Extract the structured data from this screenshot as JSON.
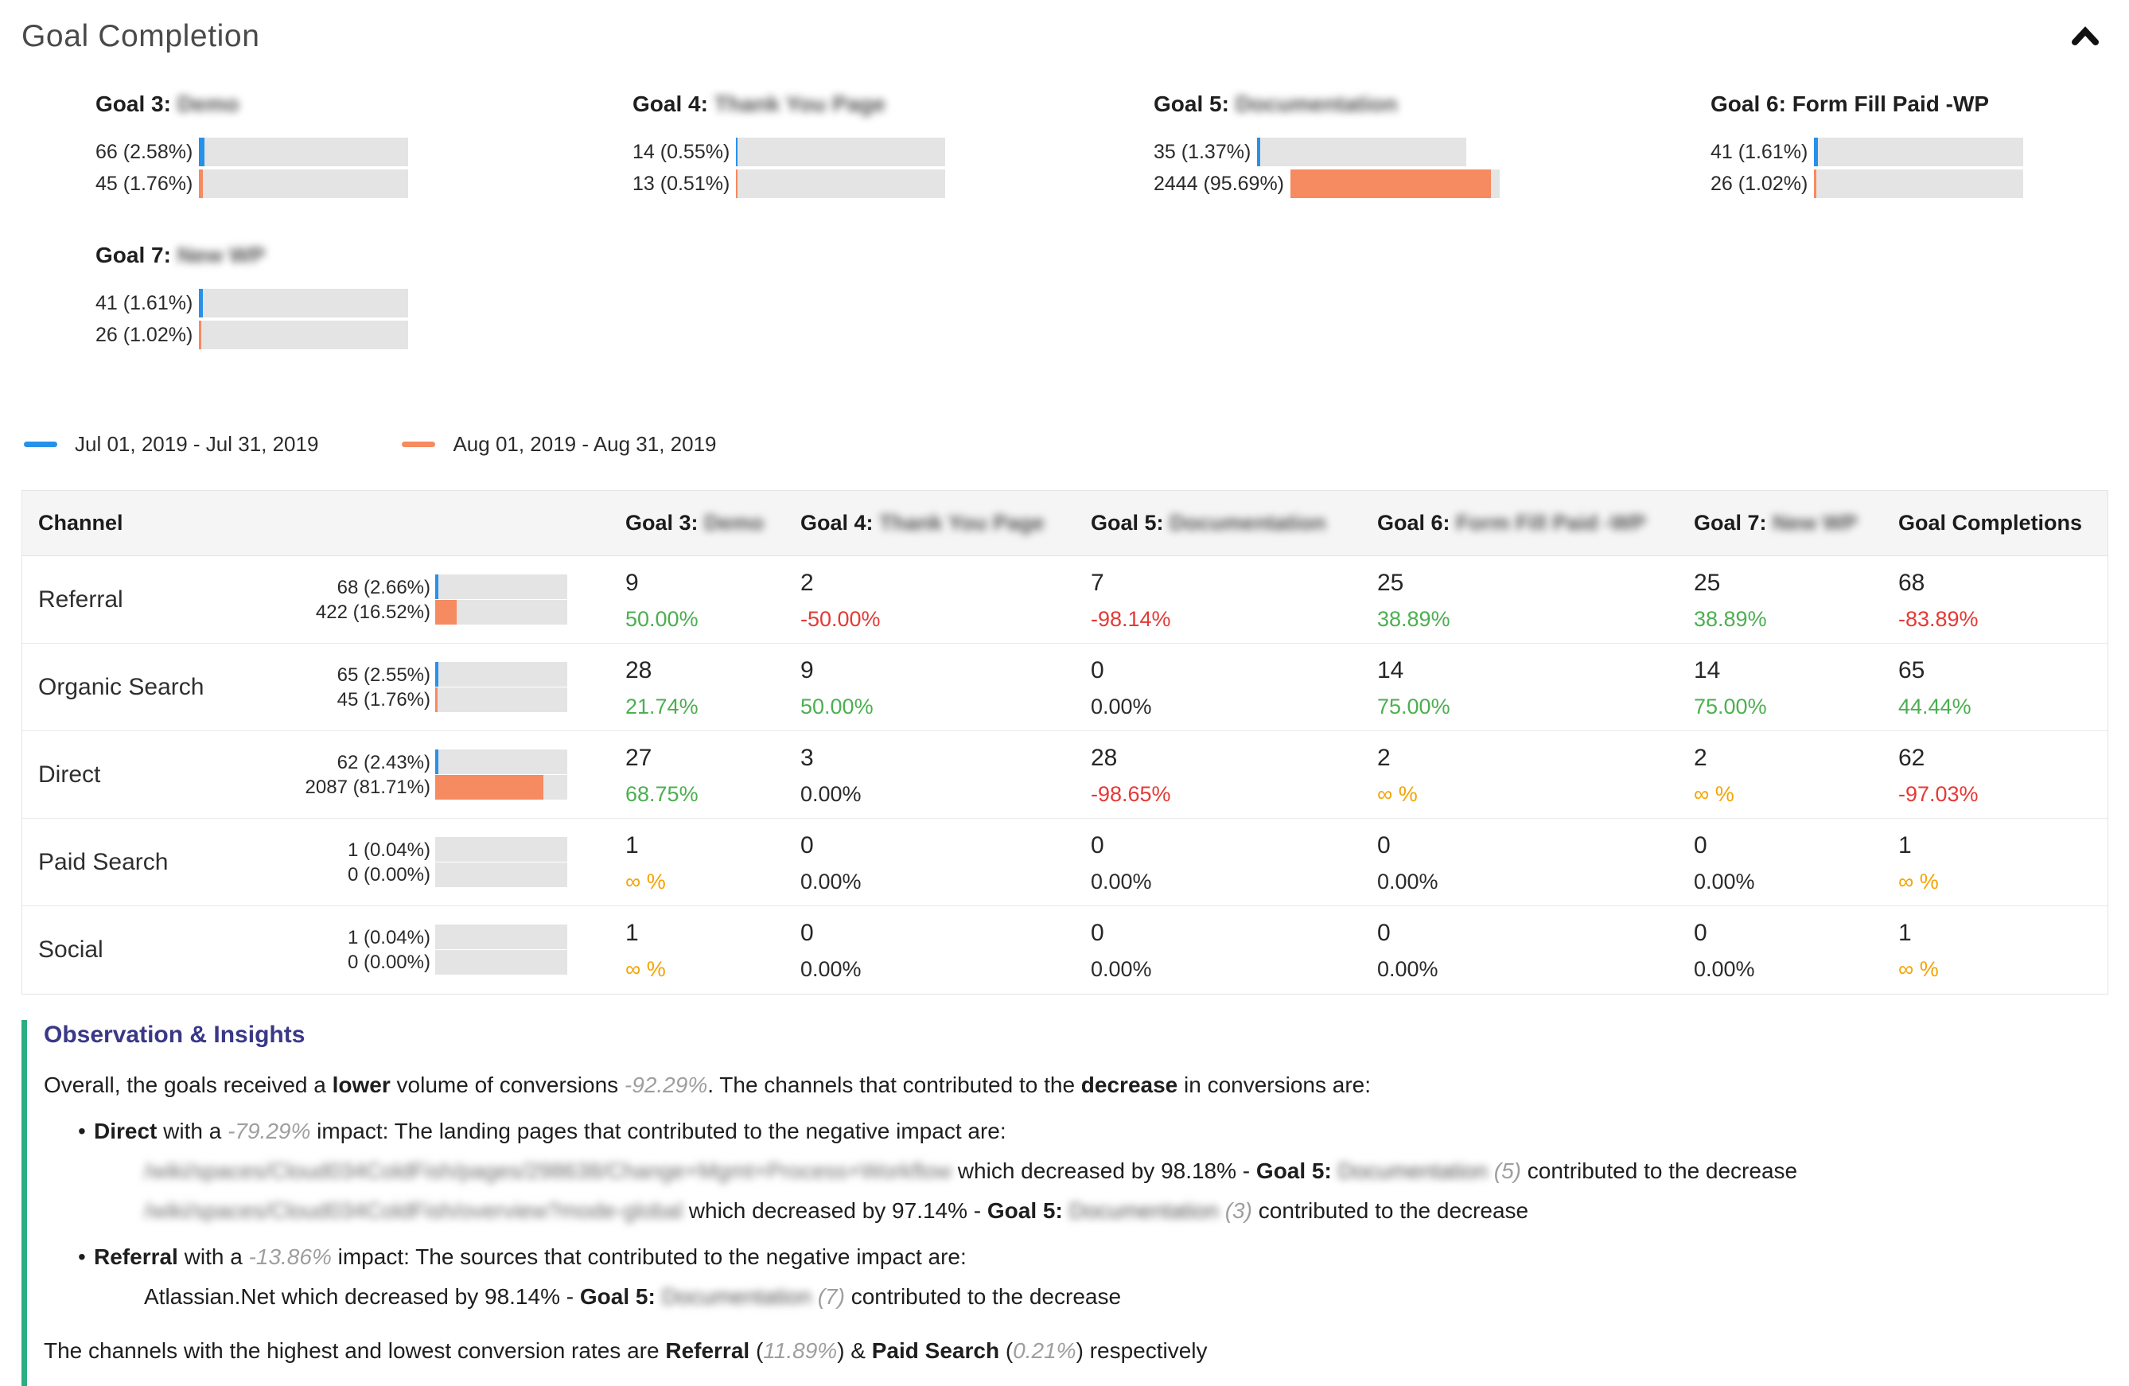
{
  "page": {
    "title": "Goal Completion"
  },
  "colors": {
    "period1_blue": "#2791ea",
    "period2_orange": "#f68a60",
    "positive_green": "#4caf50",
    "negative_red": "#e53935",
    "infinity_amber": "#f5a300",
    "insights_accent_green": "#2bae81",
    "insights_title_indigo": "#3a3887",
    "bar_track_gray": "#e4e4e4"
  },
  "goal_cards": [
    {
      "prefix": "Goal 3:",
      "name": "Demo",
      "name_blurred": true,
      "rows": [
        {
          "label": "66 (2.58%)",
          "pct": 2.58
        },
        {
          "label": "45 (1.76%)",
          "pct": 1.76
        }
      ]
    },
    {
      "prefix": "Goal 4:",
      "name": "Thank You Page",
      "name_blurred": true,
      "rows": [
        {
          "label": "14 (0.55%)",
          "pct": 0.55
        },
        {
          "label": "13 (0.51%)",
          "pct": 0.51
        }
      ]
    },
    {
      "prefix": "Goal 5:",
      "name": "Documentation",
      "name_blurred": true,
      "rows": [
        {
          "label": "35 (1.37%)",
          "pct": 1.37
        },
        {
          "label": "2444 (95.69%)",
          "pct": 95.69
        }
      ]
    },
    {
      "prefix": "Goal 6:",
      "name": "Form Fill Paid -WP",
      "name_blurred": false,
      "rows": [
        {
          "label": "41 (1.61%)",
          "pct": 1.61
        },
        {
          "label": "26 (1.02%)",
          "pct": 1.02
        }
      ]
    },
    {
      "prefix": "Goal 7:",
      "name": "New WP",
      "name_blurred": true,
      "rows": [
        {
          "label": "41 (1.61%)",
          "pct": 1.61
        },
        {
          "label": "26 (1.02%)",
          "pct": 1.02
        }
      ]
    }
  ],
  "legend": {
    "periods": [
      {
        "label": "Jul 01, 2019 - Jul 31, 2019",
        "color": "#2791ea"
      },
      {
        "label": "Aug 01, 2019 - Aug 31, 2019",
        "color": "#f68a60"
      }
    ]
  },
  "table": {
    "header": {
      "channel": "Channel",
      "goal3_prefix": "Goal 3:",
      "goal3_name": "Demo",
      "goal4_prefix": "Goal 4:",
      "goal4_name": "Thank You Page",
      "goal5_prefix": "Goal 5:",
      "goal5_name": "Documentation",
      "goal6_prefix": "Goal 6:",
      "goal6_name": "Form Fill Paid -WP",
      "goal7_prefix": "Goal 7:",
      "goal7_name": "New WP",
      "completions": "Goal Completions"
    },
    "rows": [
      {
        "channel": "Referral",
        "bars": [
          {
            "label": "68 (2.66%)",
            "pct": 2.66
          },
          {
            "label": "422 (16.52%)",
            "pct": 16.52
          }
        ],
        "cells": [
          {
            "value": "9",
            "delta": "50.00%",
            "tone": "green"
          },
          {
            "value": "2",
            "delta": "-50.00%",
            "tone": "red"
          },
          {
            "value": "7",
            "delta": "-98.14%",
            "tone": "red"
          },
          {
            "value": "25",
            "delta": "38.89%",
            "tone": "green"
          },
          {
            "value": "25",
            "delta": "38.89%",
            "tone": "green"
          },
          {
            "value": "68",
            "delta": "-83.89%",
            "tone": "red"
          }
        ]
      },
      {
        "channel": "Organic Search",
        "bars": [
          {
            "label": "65 (2.55%)",
            "pct": 2.55
          },
          {
            "label": "45 (1.76%)",
            "pct": 1.76
          }
        ],
        "cells": [
          {
            "value": "28",
            "delta": "21.74%",
            "tone": "green"
          },
          {
            "value": "9",
            "delta": "50.00%",
            "tone": "green"
          },
          {
            "value": "0",
            "delta": "0.00%",
            "tone": "neutral"
          },
          {
            "value": "14",
            "delta": "75.00%",
            "tone": "green"
          },
          {
            "value": "14",
            "delta": "75.00%",
            "tone": "green"
          },
          {
            "value": "65",
            "delta": "44.44%",
            "tone": "green"
          }
        ]
      },
      {
        "channel": "Direct",
        "bars": [
          {
            "label": "62 (2.43%)",
            "pct": 2.43
          },
          {
            "label": "2087 (81.71%)",
            "pct": 81.71
          }
        ],
        "cells": [
          {
            "value": "27",
            "delta": "68.75%",
            "tone": "green"
          },
          {
            "value": "3",
            "delta": "0.00%",
            "tone": "neutral"
          },
          {
            "value": "28",
            "delta": "-98.65%",
            "tone": "red"
          },
          {
            "value": "2",
            "delta": "∞ %",
            "tone": "amber"
          },
          {
            "value": "2",
            "delta": "∞ %",
            "tone": "amber"
          },
          {
            "value": "62",
            "delta": "-97.03%",
            "tone": "red"
          }
        ]
      },
      {
        "channel": "Paid Search",
        "bars": [
          {
            "label": "1 (0.04%)",
            "pct": 0.04
          },
          {
            "label": "0 (0.00%)",
            "pct": 0
          }
        ],
        "cells": [
          {
            "value": "1",
            "delta": "∞ %",
            "tone": "amber"
          },
          {
            "value": "0",
            "delta": "0.00%",
            "tone": "neutral"
          },
          {
            "value": "0",
            "delta": "0.00%",
            "tone": "neutral"
          },
          {
            "value": "0",
            "delta": "0.00%",
            "tone": "neutral"
          },
          {
            "value": "0",
            "delta": "0.00%",
            "tone": "neutral"
          },
          {
            "value": "1",
            "delta": "∞ %",
            "tone": "amber"
          }
        ]
      },
      {
        "channel": "Social",
        "bars": [
          {
            "label": "1 (0.04%)",
            "pct": 0.04
          },
          {
            "label": "0 (0.00%)",
            "pct": 0
          }
        ],
        "cells": [
          {
            "value": "1",
            "delta": "∞ %",
            "tone": "amber"
          },
          {
            "value": "0",
            "delta": "0.00%",
            "tone": "neutral"
          },
          {
            "value": "0",
            "delta": "0.00%",
            "tone": "neutral"
          },
          {
            "value": "0",
            "delta": "0.00%",
            "tone": "neutral"
          },
          {
            "value": "0",
            "delta": "0.00%",
            "tone": "neutral"
          },
          {
            "value": "1",
            "delta": "∞ %",
            "tone": "amber"
          }
        ]
      }
    ]
  },
  "insights": {
    "title": "Observation & Insights",
    "p1": {
      "t1": "Overall, the goals received a ",
      "b1": "lower",
      "t2": " volume of conversions ",
      "i1": "-92.29%",
      "t3": ". The channels that contributed to the ",
      "b2": "decrease",
      "t4": " in conversions are:"
    },
    "bullet1": {
      "b1": "Direct",
      "t1": " with a ",
      "i1": "-79.29%",
      "t2": " impact: The landing pages that contributed to the negative impact are:"
    },
    "url_line1": {
      "blur_url": "/wiki/spaces/Cloud034ColdFish/pages/298638/Change+Mgmt+Process+Workflow",
      "t1": " which decreased by 98.18% - ",
      "b1": "Goal 5:",
      "blur_goal": "Documentation",
      "i1": "(5)",
      "t2": " contributed to the decrease"
    },
    "url_line2": {
      "blur_url": "/wiki/spaces/Cloud034ColdFish/overview?mode-global",
      "t1": " which decreased by 97.14% - ",
      "b1": "Goal 5:",
      "blur_goal": "Documentation",
      "i1": "(3)",
      "t2": " contributed to the decrease"
    },
    "bullet2": {
      "b1": "Referral",
      "t1": " with a ",
      "i1": "-13.86%",
      "t2": " impact: The sources that contributed to the negative impact are:"
    },
    "source_line": {
      "t0": "Atlassian.Net which decreased by 98.14% - ",
      "b1": "Goal 5:",
      "blur_goal": "Documentation",
      "i1": "(7)",
      "t2": " contributed to the decrease"
    },
    "final": {
      "t1": "The channels with the highest and lowest conversion rates are ",
      "b1": "Referral",
      "t2": " (",
      "i1": "11.89%",
      "t3": ") & ",
      "b2": "Paid Search",
      "t4": " (",
      "i2": "0.21%",
      "t5": ") respectively"
    }
  }
}
